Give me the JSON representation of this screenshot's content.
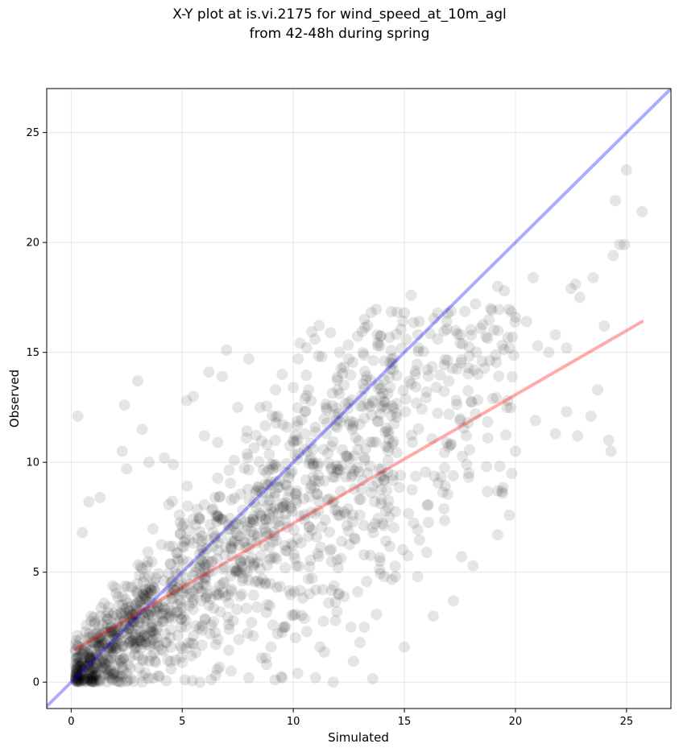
{
  "chart_data": {
    "type": "scatter",
    "title": "X-Y plot at is.vi.2175 for wind_speed_at_10m_agl",
    "subtitle": "from 42-48h during spring",
    "xlabel": "Simulated",
    "ylabel": "Observed",
    "xlim": [
      -1.1,
      27.0
    ],
    "ylim": [
      -1.2,
      27.0
    ],
    "xticks": [
      0,
      5,
      10,
      15,
      20,
      25
    ],
    "yticks": [
      0,
      5,
      10,
      15,
      20,
      25
    ],
    "grid": true,
    "point_color": "#000000",
    "point_alpha": 0.1,
    "reference_line": {
      "label": "1:1 line",
      "color": "#0000ff",
      "x": [
        -1.1,
        27.0
      ],
      "y": [
        -1.1,
        27.0
      ]
    },
    "regression_line": {
      "label": "fit",
      "color": "#ff0000",
      "x": [
        0.2,
        25.7
      ],
      "y": [
        1.5,
        16.4
      ]
    },
    "points": [
      [
        0.3,
        12.1
      ],
      [
        0.8,
        8.2
      ],
      [
        2.4,
        12.6
      ],
      [
        2.3,
        10.5
      ],
      [
        2.5,
        9.7
      ],
      [
        3.0,
        13.7
      ],
      [
        3.2,
        11.5
      ],
      [
        3.5,
        10.0
      ],
      [
        1.3,
        8.4
      ],
      [
        0.5,
        6.8
      ],
      [
        4.2,
        10.2
      ],
      [
        4.6,
        9.9
      ],
      [
        5.2,
        12.8
      ],
      [
        5.5,
        13.0
      ],
      [
        6.0,
        11.2
      ],
      [
        6.2,
        14.1
      ],
      [
        6.8,
        13.9
      ],
      [
        7.0,
        15.1
      ],
      [
        7.5,
        12.5
      ],
      [
        8.0,
        14.7
      ],
      [
        8.5,
        12.5
      ],
      [
        9.2,
        13.3
      ],
      [
        9.5,
        14.0
      ],
      [
        10.0,
        13.4
      ],
      [
        10.8,
        12.8
      ],
      [
        11.5,
        12.4
      ],
      [
        12.0,
        13.3
      ],
      [
        12.5,
        14.7
      ],
      [
        13.2,
        16.5
      ],
      [
        13.8,
        15.3
      ],
      [
        14.5,
        14.2
      ],
      [
        15.0,
        16.8
      ],
      [
        15.3,
        17.6
      ],
      [
        15.5,
        14.0
      ],
      [
        16.5,
        15.6
      ],
      [
        16.0,
        13.2
      ],
      [
        17.0,
        13.7
      ],
      [
        17.3,
        16.0
      ],
      [
        18.2,
        17.2
      ],
      [
        18.5,
        14.6
      ],
      [
        19.2,
        18.0
      ],
      [
        19.5,
        17.8
      ],
      [
        20.0,
        16.6
      ],
      [
        20.5,
        16.4
      ],
      [
        20.8,
        18.4
      ],
      [
        21.0,
        15.3
      ],
      [
        21.5,
        15.0
      ],
      [
        21.8,
        15.8
      ],
      [
        22.3,
        15.2
      ],
      [
        22.5,
        17.9
      ],
      [
        22.7,
        18.1
      ],
      [
        22.9,
        17.5
      ],
      [
        23.5,
        18.4
      ],
      [
        24.0,
        16.2
      ],
      [
        24.4,
        19.4
      ],
      [
        24.5,
        21.9
      ],
      [
        24.7,
        19.9
      ],
      [
        24.9,
        19.9
      ],
      [
        25.0,
        23.3
      ],
      [
        25.7,
        21.4
      ],
      [
        24.2,
        11.0
      ],
      [
        24.3,
        10.5
      ],
      [
        23.7,
        13.3
      ],
      [
        23.4,
        12.1
      ],
      [
        22.8,
        11.2
      ],
      [
        22.3,
        12.3
      ],
      [
        21.8,
        11.3
      ],
      [
        20.9,
        11.9
      ],
      [
        20.0,
        10.5
      ],
      [
        19.2,
        8.7
      ],
      [
        19.2,
        6.7
      ],
      [
        17.2,
        3.7
      ],
      [
        16.3,
        3.0
      ],
      [
        16.0,
        5.9
      ],
      [
        15.0,
        1.6
      ],
      [
        14.6,
        4.8
      ],
      [
        13.0,
        1.8
      ],
      [
        13.2,
        2.5
      ],
      [
        12.6,
        2.5
      ],
      [
        11.9,
        2.8
      ],
      [
        15.6,
        4.8
      ],
      [
        14.1,
        4.8
      ],
      [
        13.9,
        5.5
      ],
      [
        13.6,
        6.8
      ],
      [
        12.0,
        7.6
      ],
      [
        17.8,
        9.9
      ],
      [
        18.7,
        9.8
      ],
      [
        18.2,
        12.2
      ],
      [
        17.5,
        11.9
      ],
      [
        16.9,
        10.9
      ],
      [
        1.0,
        0.2
      ],
      [
        1.5,
        0.6
      ],
      [
        0.6,
        1.5
      ],
      [
        2.2,
        1.0
      ],
      [
        1.8,
        2.5
      ],
      [
        0.9,
        3.0
      ],
      [
        2.5,
        0.4
      ],
      [
        3.2,
        0.0
      ],
      [
        3.8,
        0.9
      ],
      [
        4.5,
        0.6
      ],
      [
        5.0,
        0.9
      ],
      [
        5.8,
        0.0
      ],
      [
        6.5,
        0.3
      ],
      [
        7.2,
        0.5
      ],
      [
        8.0,
        0.2
      ],
      [
        8.8,
        0.8
      ],
      [
        9.5,
        0.2
      ],
      [
        10.2,
        0.4
      ],
      [
        11.0,
        0.2
      ],
      [
        11.8,
        0.0
      ],
      [
        4.8,
        3.2
      ],
      [
        5.5,
        2.1
      ],
      [
        6.3,
        2.6
      ],
      [
        7.1,
        3.6
      ],
      [
        8.2,
        2.1
      ],
      [
        9.0,
        1.6
      ],
      [
        9.6,
        2.5
      ],
      [
        10.5,
        2.9
      ],
      [
        11.2,
        1.6
      ],
      [
        11.6,
        3.6
      ]
    ]
  }
}
